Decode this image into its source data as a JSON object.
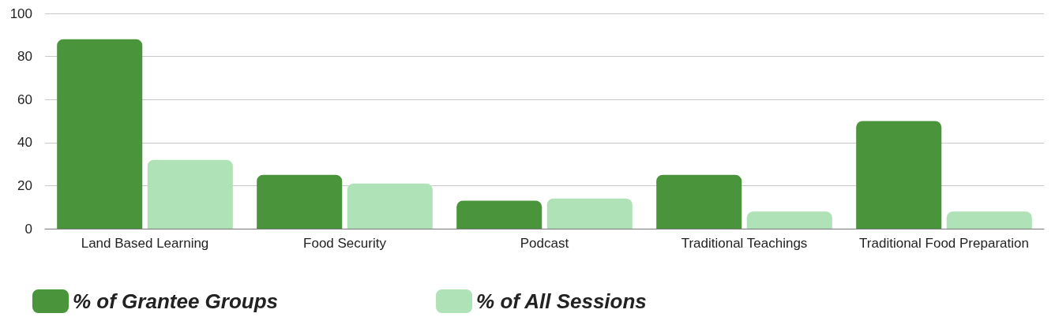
{
  "chart_data": {
    "type": "bar",
    "categories": [
      "Land Based Learning",
      "Food Security",
      "Podcast",
      "Traditional Teachings",
      "Traditional Food Preparation"
    ],
    "series": [
      {
        "name": "% of Grantee Groups",
        "color": "#4a953c",
        "values": [
          88,
          25,
          13,
          25,
          50
        ]
      },
      {
        "name": "% of All Sessions",
        "color": "#b0e2b7",
        "values": [
          32,
          21,
          14,
          8,
          8
        ]
      }
    ],
    "ylim": [
      0,
      100
    ],
    "yticks": [
      0,
      20,
      40,
      60,
      80,
      100
    ],
    "grid": "y",
    "legend": "bottom"
  }
}
